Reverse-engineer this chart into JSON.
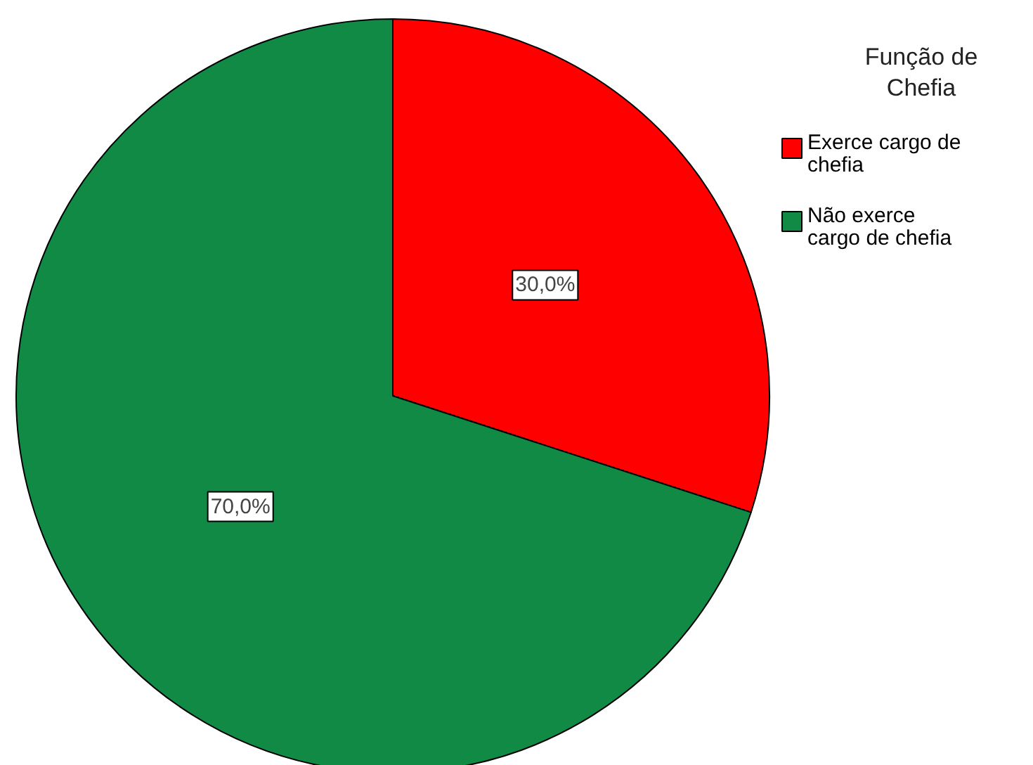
{
  "chart_data": {
    "type": "pie",
    "legend_title": "Função de Chefia",
    "legend": "top right",
    "categories": [
      "Exerce cargo de chefia",
      "Não exerce cargo de chefia"
    ],
    "values": [
      30,
      70
    ],
    "colors": [
      "#ff0000",
      "#118a46"
    ],
    "value_labels": [
      "30,0%",
      "70,0%"
    ]
  }
}
